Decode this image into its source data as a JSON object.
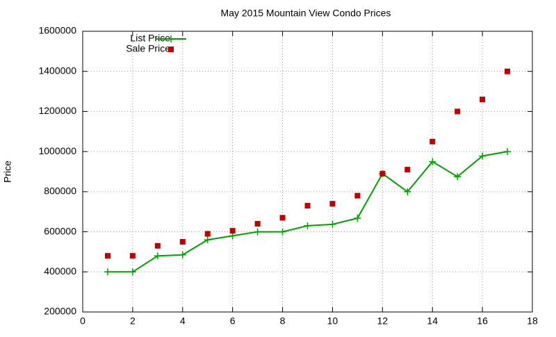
{
  "chart_data": {
    "type": "line",
    "title": "May 2015 Mountain View Condo Prices",
    "y_label": "Price",
    "x": [
      1,
      2,
      3,
      4,
      5,
      6,
      7,
      8,
      9,
      10,
      11,
      12,
      13,
      14,
      15,
      16,
      17
    ],
    "series": [
      {
        "name": "List Price",
        "color": "#00a000",
        "mode": "lines+markers",
        "values": [
          400000,
          400000,
          480000,
          485000,
          560000,
          580000,
          600000,
          600000,
          630000,
          637000,
          668000,
          890000,
          800000,
          950000,
          875000,
          978000,
          1000000
        ]
      },
      {
        "name": "Sale Price",
        "color": "#c00000",
        "mode": "markers",
        "values": [
          480000,
          480000,
          530000,
          550000,
          590000,
          605000,
          640000,
          670000,
          730000,
          740000,
          780000,
          890000,
          910000,
          1050000,
          1200000,
          1260000,
          1400000
        ]
      }
    ],
    "xlim": [
      0,
      18
    ],
    "xticks": [
      0,
      2,
      4,
      6,
      8,
      10,
      12,
      14,
      16,
      18
    ],
    "ylim": [
      200000,
      1600000
    ],
    "yticks": [
      200000,
      400000,
      600000,
      800000,
      1000000,
      1200000,
      1400000,
      1600000
    ],
    "grid": true,
    "legend": "top-left"
  }
}
